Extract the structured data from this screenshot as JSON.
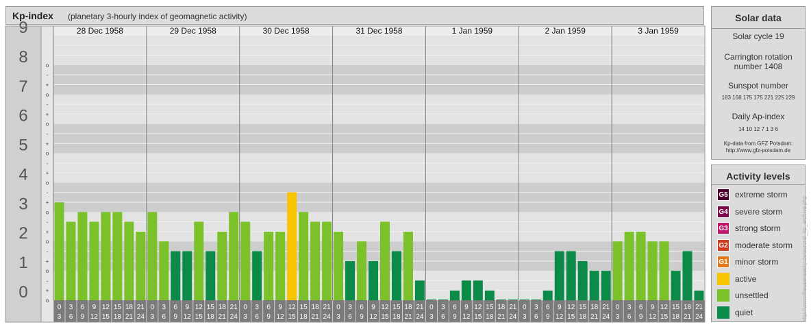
{
  "header": {
    "title": "Kp-index",
    "subtitle": "(planetary 3-hourly index of geomagnetic activity)"
  },
  "solar": {
    "title": "Solar data",
    "solar_cycle": "Solar cycle 19",
    "carrington_1": "Carrington rotation",
    "carrington_2": "number 1408",
    "sunspot_label": "Sunspot number",
    "sunspot_values": "183 168 175 175 221 225 229",
    "ap_label": "Daily Ap-index",
    "ap_values": "14 10 12 7 1 3 6",
    "credit_1": "Kp-data from GFZ Potsdam:",
    "credit_2": "http://www.gfz-potsdam.de"
  },
  "legend": {
    "title": "Activity levels",
    "items": [
      {
        "code": "G5",
        "label": "extreme storm",
        "color": "#4a0026"
      },
      {
        "code": "G4",
        "label": "severe storm",
        "color": "#7a0a4a"
      },
      {
        "code": "G3",
        "label": "strong storm",
        "color": "#c0166a"
      },
      {
        "code": "G2",
        "label": "moderate storm",
        "color": "#d13e1e"
      },
      {
        "code": "G1",
        "label": "minor storm",
        "color": "#e07a1c"
      },
      {
        "code": "",
        "label": "active",
        "color": "#f7c400"
      },
      {
        "code": "",
        "label": "unsettled",
        "color": "#7ac12a"
      },
      {
        "code": "",
        "label": "quiet",
        "color": "#0c8a48"
      }
    ]
  },
  "watermark": "http://www.theusensesky.de/auroral_kp_archive.php",
  "chart_data": {
    "type": "bar",
    "ylim": [
      0,
      9
    ],
    "y_ticks": [
      "0",
      "1",
      "2",
      "3",
      "4",
      "5",
      "6",
      "7",
      "8",
      "9"
    ],
    "minor_ticks": [
      "o",
      "+",
      "-"
    ],
    "days": [
      "28 Dec 1958",
      "29 Dec 1958",
      "30 Dec 1958",
      "31 Dec 1958",
      "1 Jan 1959",
      "2 Jan 1959",
      "3 Jan 1959"
    ],
    "interval_labels": [
      [
        "0",
        "3"
      ],
      [
        "3",
        "6"
      ],
      [
        "6",
        "9"
      ],
      [
        "9",
        "12"
      ],
      [
        "12",
        "15"
      ],
      [
        "15",
        "18"
      ],
      [
        "18",
        "21"
      ],
      [
        "21",
        "24"
      ]
    ],
    "colors": {
      "quiet": "#0c8a48",
      "unsettled": "#7ac12a",
      "active": "#f7c400"
    },
    "values": [
      3.33,
      2.67,
      3.0,
      2.67,
      3.0,
      3.0,
      2.67,
      2.33,
      3.0,
      2.0,
      1.67,
      1.67,
      2.67,
      1.67,
      2.33,
      3.0,
      2.67,
      1.67,
      2.33,
      2.33,
      3.67,
      3.0,
      2.67,
      2.67,
      2.33,
      1.33,
      2.0,
      1.33,
      2.67,
      1.67,
      2.33,
      0.67,
      0.0,
      0.0,
      0.33,
      0.67,
      0.67,
      0.33,
      0.0,
      0.0,
      0.0,
      0.0,
      0.33,
      1.67,
      1.67,
      1.33,
      1.0,
      1.0,
      2.0,
      2.33,
      2.33,
      2.0,
      2.0,
      1.0,
      1.67,
      0.33
    ]
  }
}
